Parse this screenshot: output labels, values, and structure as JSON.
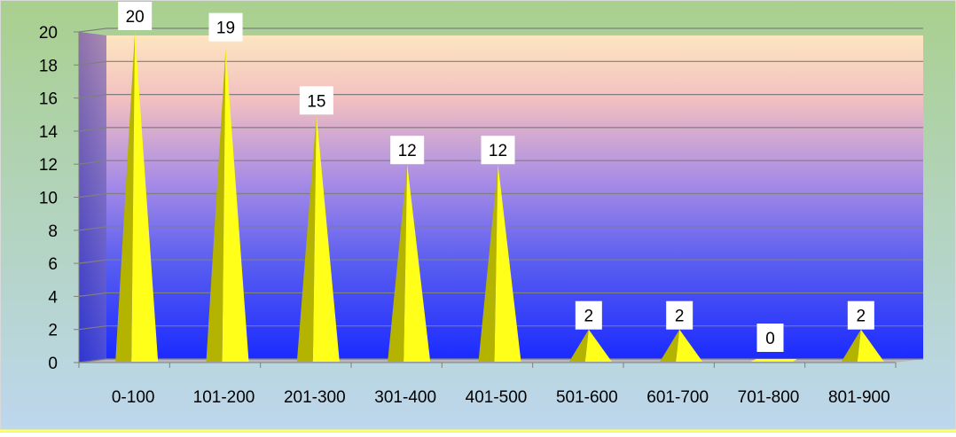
{
  "chart_data": {
    "type": "bar",
    "categories": [
      "0-100",
      "101-200",
      "201-300",
      "301-400",
      "401-500",
      "501-600",
      "601-700",
      "701-800",
      "801-900"
    ],
    "values": [
      20,
      19,
      15,
      12,
      12,
      2,
      2,
      0,
      2
    ],
    "title": "",
    "xlabel": "",
    "ylabel": "",
    "ylim": [
      0,
      20
    ],
    "yticks": [
      0,
      2,
      4,
      6,
      8,
      10,
      12,
      14,
      16,
      18,
      20
    ],
    "grid": true,
    "legend": "none",
    "data_labels": true,
    "mark_shape": "pyramid",
    "colors": {
      "mark": "#ffff1a",
      "mark_shade": "#b3b300",
      "bg_top": "#a9d08e",
      "bg_bottom": "#bdd7ee",
      "wall_top": "#fce4c4",
      "wall_bottom": "#1b2bff",
      "frame": "#ffff66"
    }
  }
}
